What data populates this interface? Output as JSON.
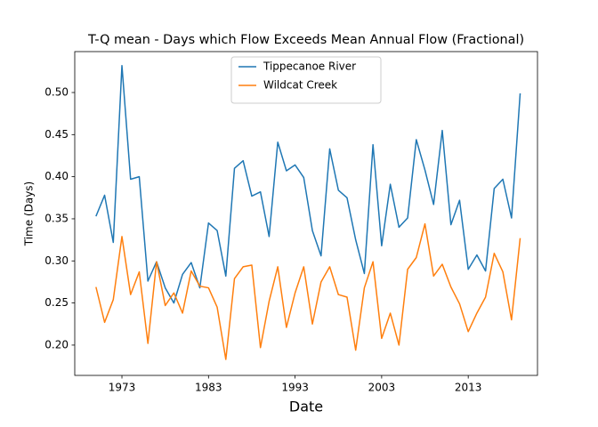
{
  "chart_data": {
    "type": "line",
    "title": "T-Q mean - Days which Flow Exceeds Mean Annual Flow (Fractional)",
    "x_label": "Date",
    "y_label": "Time (Days)",
    "x": [
      1970,
      1971,
      1972,
      1973,
      1974,
      1975,
      1976,
      1977,
      1978,
      1979,
      1980,
      1981,
      1982,
      1983,
      1984,
      1985,
      1986,
      1987,
      1988,
      1989,
      1990,
      1991,
      1992,
      1993,
      1994,
      1995,
      1996,
      1997,
      1998,
      1999,
      2000,
      2001,
      2002,
      2003,
      2004,
      2005,
      2006,
      2007,
      2008,
      2009,
      2010,
      2011,
      2012,
      2013,
      2014,
      2015,
      2016,
      2017,
      2018,
      2019
    ],
    "series": [
      {
        "name": "Tippecanoe River",
        "color": "#1f77b4",
        "values": [
          0.353,
          0.378,
          0.322,
          0.532,
          0.397,
          0.4,
          0.276,
          0.299,
          0.268,
          0.25,
          0.284,
          0.298,
          0.268,
          0.345,
          0.336,
          0.282,
          0.41,
          0.419,
          0.377,
          0.382,
          0.329,
          0.441,
          0.407,
          0.414,
          0.399,
          0.336,
          0.306,
          0.433,
          0.384,
          0.375,
          0.325,
          0.285,
          0.438,
          0.318,
          0.391,
          0.34,
          0.351,
          0.444,
          0.408,
          0.367,
          0.455,
          0.343,
          0.372,
          0.29,
          0.307,
          0.288,
          0.386,
          0.397,
          0.351,
          0.499
        ]
      },
      {
        "name": "Wildcat Creek",
        "color": "#ff7f0e",
        "values": [
          0.269,
          0.227,
          0.254,
          0.329,
          0.26,
          0.287,
          0.202,
          0.299,
          0.247,
          0.262,
          0.238,
          0.288,
          0.27,
          0.268,
          0.245,
          0.183,
          0.279,
          0.293,
          0.295,
          0.197,
          0.252,
          0.293,
          0.221,
          0.262,
          0.293,
          0.225,
          0.275,
          0.293,
          0.26,
          0.257,
          0.194,
          0.268,
          0.299,
          0.208,
          0.238,
          0.2,
          0.29,
          0.304,
          0.344,
          0.282,
          0.296,
          0.269,
          0.249,
          0.216,
          0.238,
          0.257,
          0.309,
          0.287,
          0.23,
          0.327
        ]
      }
    ],
    "xlim": [
      1967.55,
      2021.0
    ],
    "xticks": [
      1973,
      1983,
      1993,
      2003,
      2013
    ],
    "ylim": [
      0.164,
      0.5486
    ],
    "yticks": [
      {
        "value": 0.2,
        "label": "0.20"
      },
      {
        "value": 0.25,
        "label": "0.25"
      },
      {
        "value": 0.3,
        "label": "0.30"
      },
      {
        "value": 0.35,
        "label": "0.35"
      },
      {
        "value": 0.4,
        "label": "0.40"
      },
      {
        "value": 0.45,
        "label": "0.45"
      },
      {
        "value": 0.5,
        "label": "0.50"
      }
    ],
    "legend": "upper center",
    "grid": false
  }
}
